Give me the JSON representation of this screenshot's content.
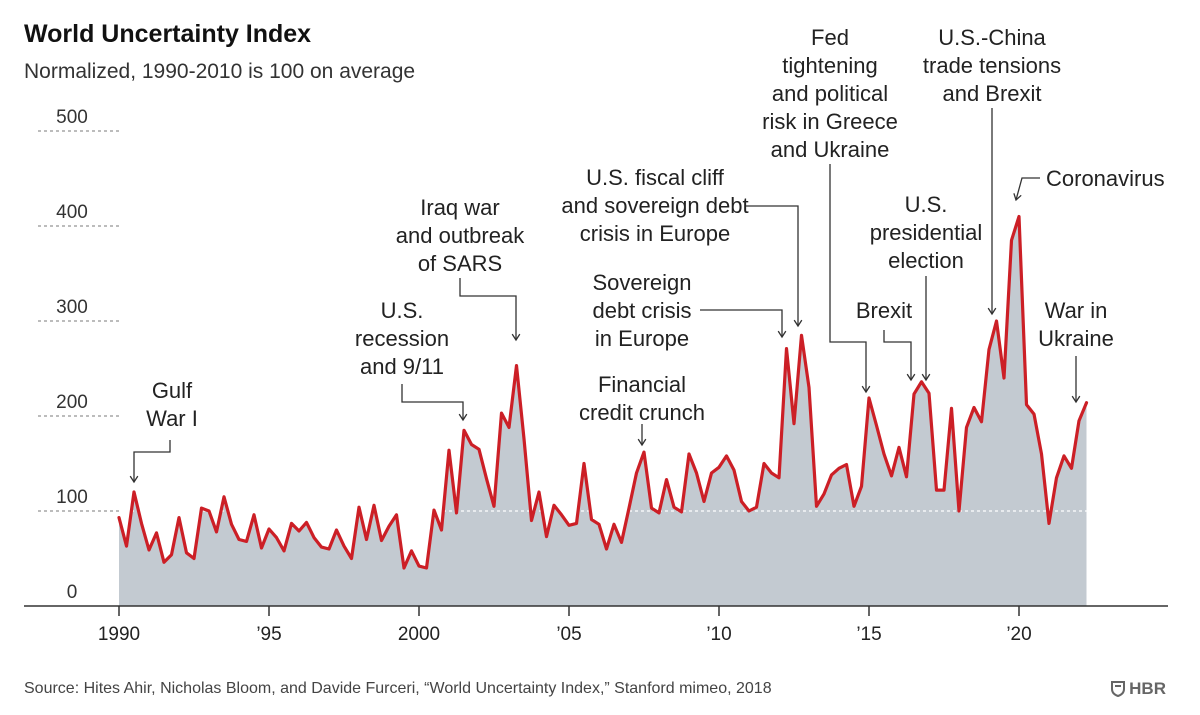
{
  "header": {
    "title": "World Uncertainty Index",
    "subtitle": "Normalized, 1990-2010 is 100 on average"
  },
  "footer": {
    "source": "Source: Hites Ahir, Nicholas Bloom, and Davide Furceri, “World Uncertainty Index,” Stanford mimeo, 2018",
    "brand": "HBR"
  },
  "colors": {
    "line": "#cc1f26",
    "area": "#c3cad1",
    "grid": "#7a7a7a",
    "axis": "#333333",
    "ref_line": "#ffffff"
  },
  "chart_data": {
    "type": "area",
    "title": "World Uncertainty Index",
    "subtitle": "Normalized, 1990-2010 is 100 on average",
    "xlabel": "",
    "ylabel": "",
    "ylim": [
      0,
      500
    ],
    "yticks": [
      0,
      100,
      200,
      300,
      400,
      500
    ],
    "ytick_labels": [
      "0",
      "100",
      "200",
      "300",
      "400",
      "500"
    ],
    "xlim": [
      1990,
      2025
    ],
    "xticks": [
      1990,
      1995,
      2000,
      2005,
      2010,
      2015,
      2020
    ],
    "xtick_labels": [
      "1990",
      "’95",
      "2000",
      "’05",
      "’10",
      "’15",
      "’20"
    ],
    "grid": true,
    "reference_line": 100,
    "legend": "none",
    "x": [
      1990.0,
      1990.25,
      1990.5,
      1990.75,
      1991.0,
      1991.25,
      1991.5,
      1991.75,
      1992.0,
      1992.25,
      1992.5,
      1992.75,
      1993.0,
      1993.25,
      1993.5,
      1993.75,
      1994.0,
      1994.25,
      1994.5,
      1994.75,
      1995.0,
      1995.25,
      1995.5,
      1995.75,
      1996.0,
      1996.25,
      1996.5,
      1996.75,
      1997.0,
      1997.25,
      1997.5,
      1997.75,
      1998.0,
      1998.25,
      1998.5,
      1998.75,
      1999.0,
      1999.25,
      1999.5,
      1999.75,
      2000.0,
      2000.25,
      2000.5,
      2000.75,
      2001.0,
      2001.25,
      2001.5,
      2001.75,
      2002.0,
      2002.25,
      2002.5,
      2002.75,
      2003.0,
      2003.25,
      2003.5,
      2003.75,
      2004.0,
      2004.25,
      2004.5,
      2004.75,
      2005.0,
      2005.25,
      2005.5,
      2005.75,
      2006.0,
      2006.25,
      2006.5,
      2006.75,
      2007.0,
      2007.25,
      2007.5,
      2007.75,
      2008.0,
      2008.25,
      2008.5,
      2008.75,
      2009.0,
      2009.25,
      2009.5,
      2009.75,
      2010.0,
      2010.25,
      2010.5,
      2010.75,
      2011.0,
      2011.25,
      2011.5,
      2011.75,
      2012.0,
      2012.25,
      2012.5,
      2012.75,
      2013.0,
      2013.25,
      2013.5,
      2013.75,
      2014.0,
      2014.25,
      2014.5,
      2014.75,
      2015.0,
      2015.25,
      2015.5,
      2015.75,
      2016.0,
      2016.25,
      2016.5,
      2016.75,
      2017.0,
      2017.25,
      2017.5,
      2017.75,
      2018.0,
      2018.25,
      2018.5,
      2018.75,
      2019.0,
      2019.25,
      2019.5,
      2019.75,
      2020.0,
      2020.25,
      2020.5,
      2020.75,
      2021.0,
      2021.25,
      2021.5,
      2021.75,
      2022.0,
      2022.25
    ],
    "series": [
      {
        "values": [
          93,
          63,
          120,
          87,
          59,
          77,
          46,
          54,
          93,
          56,
          50,
          103,
          100,
          78,
          115,
          86,
          70,
          68,
          96,
          61,
          81,
          72,
          58,
          87,
          79,
          88,
          72,
          62,
          60,
          80,
          63,
          50,
          104,
          70,
          106,
          69,
          84,
          96,
          40,
          58,
          42,
          40,
          101,
          80,
          164,
          98,
          185,
          170,
          165,
          134,
          105,
          203,
          188,
          253,
          176,
          90,
          120,
          73,
          106,
          96,
          85,
          87,
          150,
          91,
          86,
          60,
          86,
          67,
          103,
          140,
          162,
          103,
          98,
          133,
          104,
          99,
          160,
          140,
          110,
          140,
          146,
          158,
          143,
          110,
          100,
          104,
          150,
          140,
          135,
          271,
          192,
          285,
          230,
          105,
          118,
          138,
          145,
          149,
          105,
          126,
          219,
          190,
          160,
          137,
          167,
          136,
          223,
          236,
          224,
          122,
          122,
          208,
          100,
          188,
          209,
          194,
          270,
          300,
          240,
          385,
          410,
          212,
          202,
          160,
          87,
          135,
          158,
          145,
          195,
          214
        ]
      }
    ],
    "annotations": [
      {
        "id": "gulf-war",
        "label": [
          "Gulf",
          "War I"
        ],
        "x": 1990.5,
        "y": 120
      },
      {
        "id": "recession-911",
        "label": [
          "U.S.",
          "recession",
          "and 9/11"
        ],
        "x": 2001.5,
        "y": 185
      },
      {
        "id": "iraq-sars",
        "label": [
          "Iraq war",
          "and outbreak",
          "of SARS"
        ],
        "x": 2003.25,
        "y": 253
      },
      {
        "id": "financial-crunch",
        "label": [
          "Financial",
          "credit crunch"
        ],
        "x": 2007.5,
        "y": 162
      },
      {
        "id": "sovereign-debt",
        "label": [
          "Sovereign",
          "debt crisis",
          "in Europe"
        ],
        "x": 2012.25,
        "y": 271
      },
      {
        "id": "fiscal-cliff",
        "label": [
          "U.S. fiscal cliff",
          "and sovereign debt",
          "crisis in Europe"
        ],
        "x": 2012.75,
        "y": 285
      },
      {
        "id": "fed-greece",
        "label": [
          "Fed",
          "tightening",
          "and political",
          "risk in Greece",
          "and Ukraine"
        ],
        "x": 2015.0,
        "y": 219
      },
      {
        "id": "brexit",
        "label": [
          "Brexit"
        ],
        "x": 2016.5,
        "y": 223
      },
      {
        "id": "us-election",
        "label": [
          "U.S.",
          "presidential",
          "election"
        ],
        "x": 2016.75,
        "y": 236
      },
      {
        "id": "china-trade",
        "label": [
          "U.S.-China",
          "trade tensions",
          "and Brexit"
        ],
        "x": 2019.25,
        "y": 300
      },
      {
        "id": "coronavirus",
        "label": [
          "Coronavirus"
        ],
        "x": 2020.0,
        "y": 410
      },
      {
        "id": "ukraine-war",
        "label": [
          "War in",
          "Ukraine"
        ],
        "x": 2022.0,
        "y": 195
      }
    ]
  }
}
